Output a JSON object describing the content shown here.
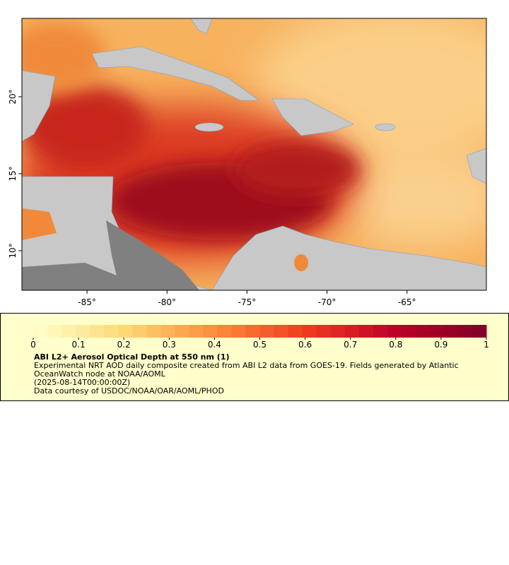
{
  "map": {
    "xlim": [
      -89.07,
      -60.04
    ],
    "ylim": [
      7.43,
      25.09
    ],
    "xticks": [
      {
        "value": -85,
        "label": "-85°"
      },
      {
        "value": -80,
        "label": "-80°"
      },
      {
        "value": -75,
        "label": "-75°"
      },
      {
        "value": -70,
        "label": "-70°"
      },
      {
        "value": -65,
        "label": "-65°"
      }
    ],
    "yticks": [
      {
        "value": 10,
        "label": "10°"
      },
      {
        "value": 15,
        "label": "15°"
      },
      {
        "value": 20,
        "label": "20°"
      }
    ]
  },
  "colorbar": {
    "lim": [
      0,
      1
    ],
    "ticks": [
      0,
      0.1,
      0.2,
      0.3,
      0.4,
      0.5,
      0.6,
      0.7,
      0.8,
      0.9,
      1
    ]
  },
  "legend": {
    "title": "ABI L2+ Aerosol Optical Depth at 550 nm (1)",
    "description": "Experimental NRT AOD daily composite created from ABI L2 data from GOES-19. Fields generated by Atlantic OceanWatch node at NOAA/AOML",
    "time": "(2025-08-14T00:00:00Z)",
    "credit": "Data courtesy of USDOC/NOAA/OAR/AOML/PHOD"
  }
}
